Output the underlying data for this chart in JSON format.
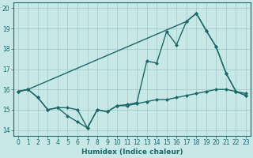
{
  "xlabel": "Humidex (Indice chaleur)",
  "xlim": [
    -0.5,
    23.5
  ],
  "ylim": [
    13.7,
    20.3
  ],
  "xticks": [
    0,
    1,
    2,
    3,
    4,
    5,
    6,
    7,
    8,
    9,
    10,
    11,
    12,
    13,
    14,
    15,
    16,
    17,
    18,
    19,
    20,
    21,
    22,
    23
  ],
  "yticks": [
    14,
    15,
    16,
    17,
    18,
    19,
    20
  ],
  "bg_color": "#c8e8e8",
  "grid_color": "#a0c8c8",
  "line_color": "#1a6868",
  "line1_x": [
    0,
    1,
    2,
    3,
    4,
    5,
    6,
    7,
    8,
    9,
    10,
    11,
    12,
    13,
    14,
    15,
    16,
    17,
    18,
    19,
    20,
    21,
    22,
    23
  ],
  "line1_y": [
    15.9,
    16.0,
    15.6,
    15.0,
    15.1,
    14.7,
    14.4,
    14.1,
    15.0,
    14.9,
    15.2,
    15.2,
    15.3,
    15.4,
    15.5,
    15.5,
    15.6,
    15.7,
    15.8,
    15.9,
    16.0,
    16.0,
    15.9,
    15.8
  ],
  "line2_x": [
    0,
    1,
    2,
    3,
    4,
    5,
    6,
    7,
    8,
    9,
    10,
    11,
    12,
    13,
    14,
    15,
    16,
    17,
    18,
    19,
    20,
    21,
    22,
    23
  ],
  "line2_y": [
    15.9,
    16.0,
    15.6,
    15.0,
    15.1,
    15.1,
    15.0,
    14.1,
    15.0,
    14.9,
    15.2,
    15.25,
    15.35,
    17.4,
    17.3,
    18.85,
    18.2,
    19.35,
    19.75,
    18.9,
    18.1,
    16.8,
    15.9,
    15.7
  ],
  "line3_x": [
    0,
    1,
    17,
    18,
    19,
    20,
    21,
    22,
    23
  ],
  "line3_y": [
    15.9,
    16.0,
    19.35,
    19.75,
    18.9,
    18.1,
    16.8,
    15.9,
    15.7
  ],
  "markersize": 2.5,
  "linewidth": 1.0
}
